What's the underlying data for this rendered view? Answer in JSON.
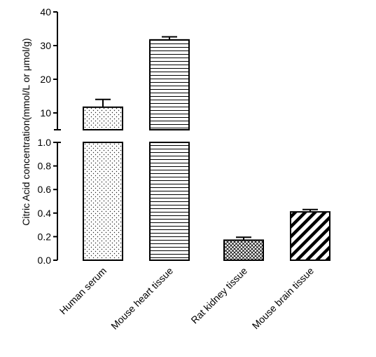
{
  "chart_data": {
    "type": "bar",
    "title": "",
    "xlabel": "",
    "ylabel": "Citric Acid concentration(mmol/L or μmol/g)",
    "categories": [
      "Human serum",
      "Mouse heart tissue",
      "Rat kidney tissue",
      "Mouse brain tissue"
    ],
    "values": [
      11.7,
      31.7,
      0.17,
      0.41
    ],
    "error_upper": [
      2.3,
      0.9,
      0.025,
      0.02
    ],
    "bar_patterns": [
      "dots",
      "horizontal-lines",
      "crosshatch",
      "diagonal-lines"
    ],
    "broken_axis": {
      "lower": {
        "ylim": [
          0,
          1.0
        ],
        "ticks": [
          "0.0",
          "0.2",
          "0.4",
          "0.6",
          "0.8",
          "1.0"
        ]
      },
      "upper": {
        "ylim": [
          5,
          40
        ],
        "ticks": [
          "10",
          "20",
          "30",
          "40"
        ]
      }
    },
    "grid": false,
    "legend": "none"
  }
}
